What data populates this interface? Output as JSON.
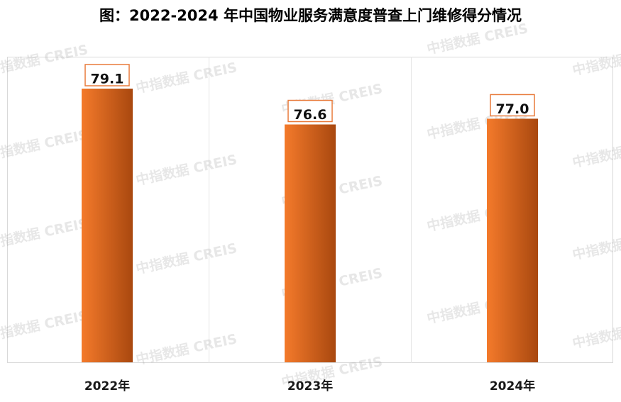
{
  "title": "图：2022-2024 年中国物业服务满意度普查上门维修得分情况",
  "watermark_text": "中指数据 CREIS",
  "colors": {
    "bar_light": "#f47a2b",
    "bar_dark": "#a9480f",
    "label_border": "#e87a3a"
  },
  "chart_data": {
    "type": "bar",
    "categories": [
      "2022年",
      "2023年",
      "2024年"
    ],
    "values": [
      79.1,
      76.6,
      77.0
    ],
    "value_labels": [
      "79.1",
      "76.6",
      "77.0"
    ],
    "ylim": [
      60,
      80
    ],
    "grid": false,
    "legend": "none"
  }
}
